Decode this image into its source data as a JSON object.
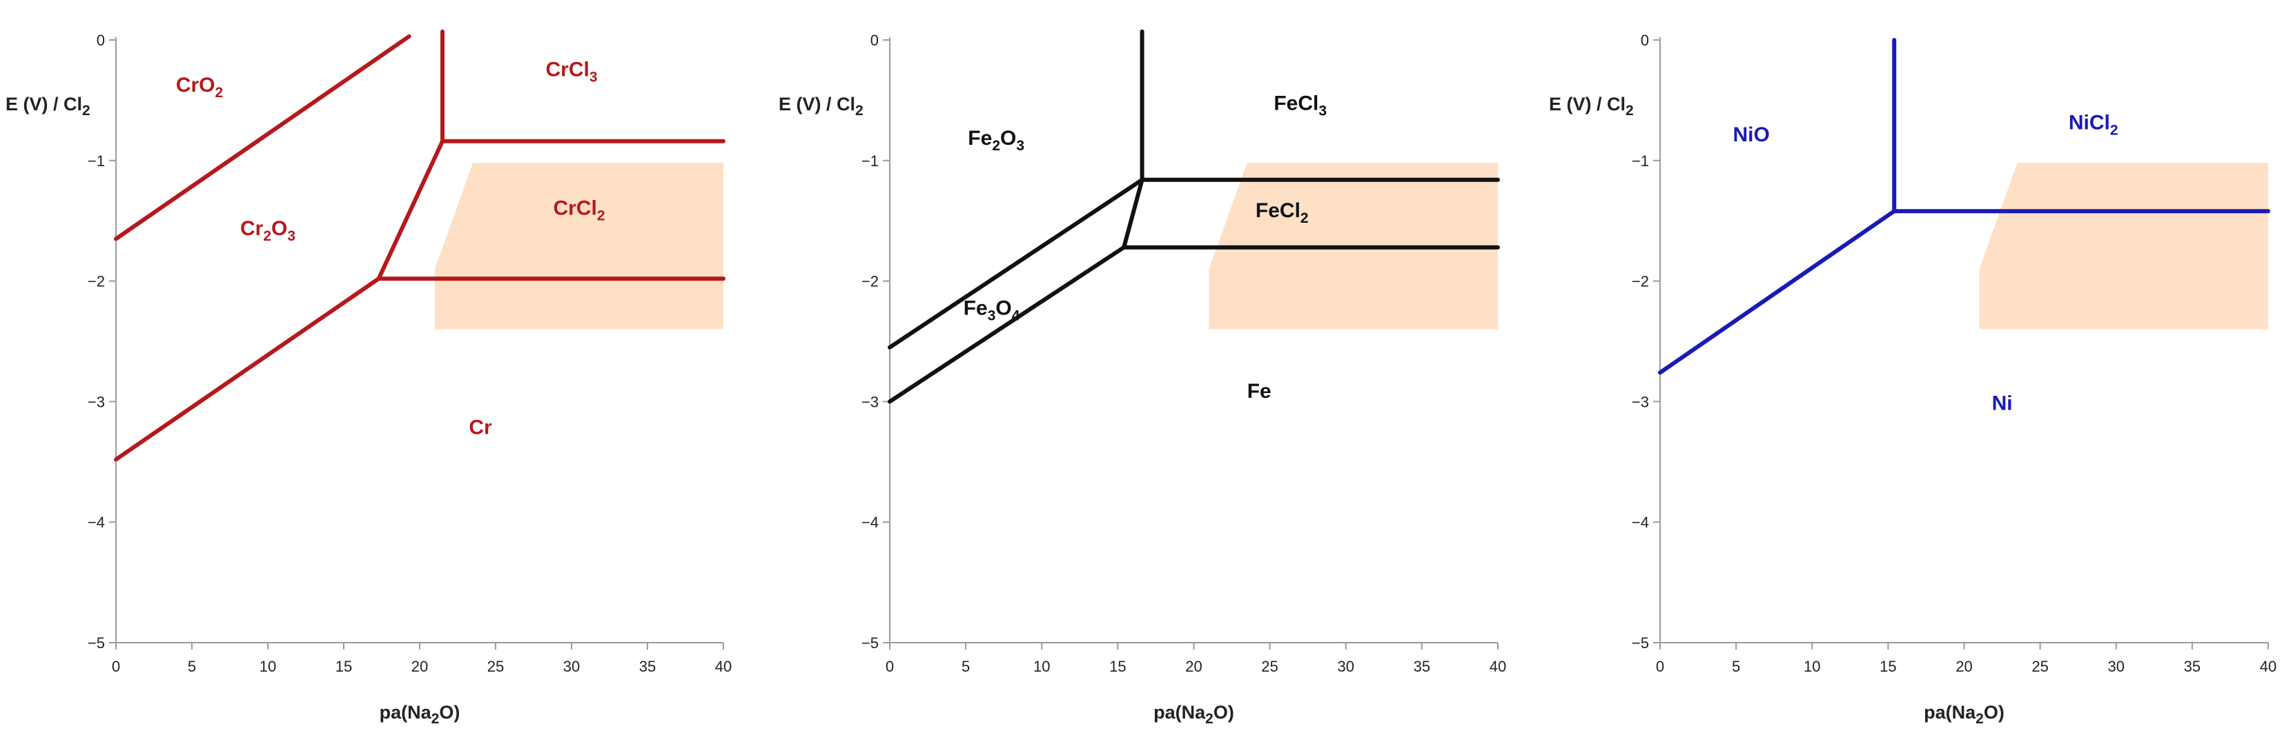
{
  "chart_data": [
    {
      "type": "line",
      "xlabel": "pa(Na2O)",
      "ylabel": "E (V) / Cl2",
      "xlim": [
        0,
        40
      ],
      "ylim": [
        -5,
        0
      ],
      "x_ticks": [
        0,
        5,
        10,
        15,
        20,
        25,
        30,
        35,
        40
      ],
      "y_ticks": [
        0,
        -1,
        -2,
        -3,
        -4,
        -5
      ],
      "grid": false,
      "color": "#b5191c",
      "shaded_region": {
        "color": "#fde0c5",
        "points": [
          [
            23.5,
            -1.02
          ],
          [
            40,
            -1.02
          ],
          [
            40,
            -2.4
          ],
          [
            21,
            -2.4
          ],
          [
            21,
            -1.9
          ]
        ]
      },
      "series": [
        {
          "values": [
            [
              0,
              -1.65
            ],
            [
              19.3,
              0.03
            ]
          ]
        },
        {
          "values": [
            [
              21.5,
              0.07
            ],
            [
              21.5,
              -0.84
            ]
          ]
        },
        {
          "values": [
            [
              21.5,
              -0.84
            ],
            [
              40,
              -0.84
            ]
          ]
        },
        {
          "values": [
            [
              21.5,
              -0.84
            ],
            [
              17.3,
              -1.98
            ]
          ]
        },
        {
          "values": [
            [
              17.3,
              -1.98
            ],
            [
              0,
              -3.48
            ]
          ]
        },
        {
          "values": [
            [
              17.3,
              -1.98
            ],
            [
              40,
              -1.98
            ]
          ]
        }
      ],
      "labels": [
        {
          "text": "CrO",
          "sub": "2",
          "tail": "",
          "x": 5.5,
          "y": -0.43
        },
        {
          "text": "CrCl",
          "sub": "3",
          "tail": "",
          "x": 30,
          "y": -0.3
        },
        {
          "text": "Cr",
          "sub": "2",
          "tail": "O",
          "sub2": "3",
          "x": 10,
          "y": -1.62
        },
        {
          "text": "CrCl",
          "sub": "2",
          "tail": "",
          "x": 30.5,
          "y": -1.45
        },
        {
          "text": "Cr",
          "sub": "",
          "tail": "",
          "x": 24,
          "y": -3.27
        }
      ]
    },
    {
      "type": "line",
      "xlabel": "pa(Na2O)",
      "ylabel": "E (V) / Cl2",
      "xlim": [
        0,
        40
      ],
      "ylim": [
        -5,
        0
      ],
      "x_ticks": [
        0,
        5,
        10,
        15,
        20,
        25,
        30,
        35,
        40
      ],
      "y_ticks": [
        0,
        -1,
        -2,
        -3,
        -4,
        -5
      ],
      "grid": false,
      "color": "#111111",
      "shaded_region": {
        "color": "#fde0c5",
        "points": [
          [
            23.5,
            -1.02
          ],
          [
            40,
            -1.02
          ],
          [
            40,
            -2.4
          ],
          [
            21,
            -2.4
          ],
          [
            21,
            -1.9
          ]
        ]
      },
      "series": [
        {
          "values": [
            [
              16.6,
              0.07
            ],
            [
              16.6,
              -1.16
            ]
          ]
        },
        {
          "values": [
            [
              16.6,
              -1.16
            ],
            [
              40,
              -1.16
            ]
          ]
        },
        {
          "values": [
            [
              16.6,
              -1.16
            ],
            [
              0,
              -2.55
            ]
          ]
        },
        {
          "values": [
            [
              16.6,
              -1.16
            ],
            [
              15.4,
              -1.72
            ]
          ]
        },
        {
          "values": [
            [
              15.4,
              -1.72
            ],
            [
              40,
              -1.72
            ]
          ]
        },
        {
          "values": [
            [
              15.4,
              -1.72
            ],
            [
              0,
              -3.0
            ]
          ]
        }
      ],
      "labels": [
        {
          "text": "Fe",
          "sub": "2",
          "tail": "O",
          "sub2": "3",
          "x": 7,
          "y": -0.87
        },
        {
          "text": "FeCl",
          "sub": "3",
          "tail": "",
          "x": 27,
          "y": -0.58
        },
        {
          "text": "FeCl",
          "sub": "2",
          "tail": "",
          "x": 25.8,
          "y": -1.47
        },
        {
          "text": "Fe",
          "sub": "3",
          "tail": "O",
          "sub2": "4",
          "x": 6.7,
          "y": -2.28
        },
        {
          "text": "Fe",
          "sub": "",
          "tail": "",
          "x": 24.3,
          "y": -2.97
        }
      ]
    },
    {
      "type": "line",
      "xlabel": "pa(Na2O)",
      "ylabel": "E (V) / Cl2",
      "xlim": [
        0,
        40
      ],
      "ylim": [
        -5,
        0
      ],
      "x_ticks": [
        0,
        5,
        10,
        15,
        20,
        25,
        30,
        35,
        40
      ],
      "y_ticks": [
        0,
        -1,
        -2,
        -3,
        -4,
        -5
      ],
      "grid": false,
      "color": "#1a1ab5",
      "shaded_region": {
        "color": "#fde0c5",
        "points": [
          [
            23.5,
            -1.02
          ],
          [
            40,
            -1.02
          ],
          [
            40,
            -2.4
          ],
          [
            21,
            -2.4
          ],
          [
            21,
            -1.9
          ]
        ]
      },
      "series": [
        {
          "values": [
            [
              15.4,
              0.0
            ],
            [
              15.4,
              -1.42
            ]
          ]
        },
        {
          "values": [
            [
              15.4,
              -1.42
            ],
            [
              40,
              -1.42
            ]
          ]
        },
        {
          "values": [
            [
              15.4,
              -1.42
            ],
            [
              0,
              -2.76
            ]
          ]
        }
      ],
      "labels": [
        {
          "text": "NiO",
          "sub": "",
          "tail": "",
          "x": 6,
          "y": -0.84
        },
        {
          "text": "NiCl",
          "sub": "2",
          "tail": "",
          "x": 28.5,
          "y": -0.74
        },
        {
          "text": "Ni",
          "sub": "",
          "tail": "",
          "x": 22.5,
          "y": -3.07
        }
      ]
    }
  ]
}
